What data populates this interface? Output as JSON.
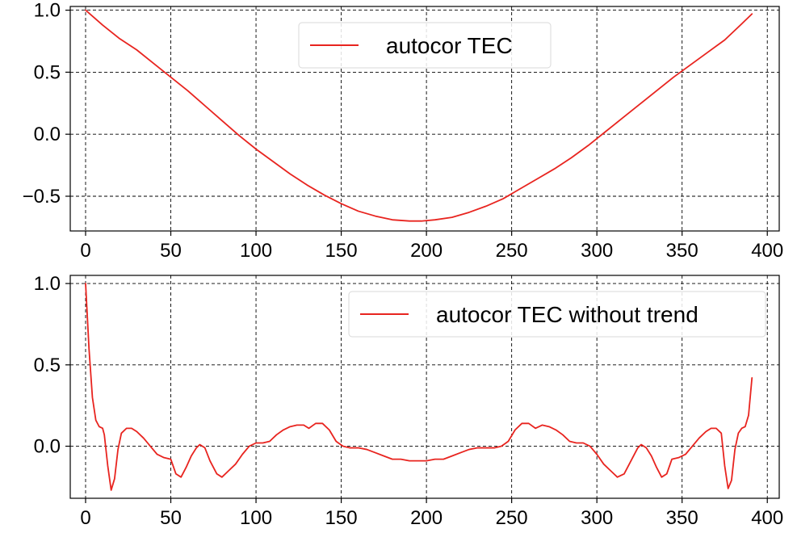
{
  "chart_data": [
    {
      "type": "line",
      "xlim": [
        -9,
        407
      ],
      "ylim": [
        -0.78,
        1.03
      ],
      "x_ticks": [
        0,
        50,
        100,
        150,
        200,
        250,
        300,
        350,
        400
      ],
      "y_ticks": [
        -0.5,
        0.0,
        0.5,
        1.0
      ],
      "x_tick_labels": [
        "0",
        "50",
        "100",
        "150",
        "200",
        "250",
        "300",
        "350",
        "400"
      ],
      "y_tick_labels": [
        "−0.5",
        "0.0",
        "0.5",
        "1.0"
      ],
      "grid": true,
      "legend_position": "top-center",
      "series": [
        {
          "name": "autocor TEC",
          "color": "#e8241f",
          "points": [
            [
              0,
              1.0
            ],
            [
              10,
              0.88
            ],
            [
              20,
              0.77
            ],
            [
              30,
              0.68
            ],
            [
              40,
              0.57
            ],
            [
              50,
              0.46
            ],
            [
              60,
              0.35
            ],
            [
              70,
              0.23
            ],
            [
              80,
              0.11
            ],
            [
              90,
              -0.01
            ],
            [
              100,
              -0.12
            ],
            [
              110,
              -0.22
            ],
            [
              120,
              -0.32
            ],
            [
              130,
              -0.41
            ],
            [
              140,
              -0.49
            ],
            [
              150,
              -0.56
            ],
            [
              160,
              -0.62
            ],
            [
              170,
              -0.66
            ],
            [
              180,
              -0.69
            ],
            [
              190,
              -0.7
            ],
            [
              197,
              -0.7
            ],
            [
              205,
              -0.69
            ],
            [
              215,
              -0.67
            ],
            [
              225,
              -0.63
            ],
            [
              235,
              -0.58
            ],
            [
              245,
              -0.52
            ],
            [
              255,
              -0.44
            ],
            [
              265,
              -0.36
            ],
            [
              275,
              -0.28
            ],
            [
              285,
              -0.19
            ],
            [
              295,
              -0.09
            ],
            [
              305,
              0.02
            ],
            [
              315,
              0.13
            ],
            [
              325,
              0.24
            ],
            [
              335,
              0.35
            ],
            [
              345,
              0.46
            ],
            [
              355,
              0.56
            ],
            [
              365,
              0.66
            ],
            [
              375,
              0.76
            ],
            [
              385,
              0.89
            ],
            [
              391,
              0.97
            ]
          ]
        }
      ]
    },
    {
      "type": "line",
      "xlim": [
        -9,
        407
      ],
      "ylim": [
        -0.32,
        1.05
      ],
      "x_ticks": [
        0,
        50,
        100,
        150,
        200,
        250,
        300,
        350,
        400
      ],
      "y_ticks": [
        0.0,
        0.5,
        1.0
      ],
      "x_tick_labels": [
        "0",
        "50",
        "100",
        "150",
        "200",
        "250",
        "300",
        "350",
        "400"
      ],
      "y_tick_labels": [
        "0.0",
        "0.5",
        "1.0"
      ],
      "grid": true,
      "legend_position": "top-right",
      "series": [
        {
          "name": "autocor TEC without trend",
          "color": "#e8241f",
          "points": [
            [
              0,
              1.0
            ],
            [
              2,
              0.6
            ],
            [
              4,
              0.3
            ],
            [
              6,
              0.16
            ],
            [
              8,
              0.12
            ],
            [
              10,
              0.11
            ],
            [
              11,
              0.07
            ],
            [
              13,
              -0.12
            ],
            [
              15,
              -0.27
            ],
            [
              17,
              -0.2
            ],
            [
              19,
              -0.02
            ],
            [
              21,
              0.08
            ],
            [
              24,
              0.11
            ],
            [
              27,
              0.11
            ],
            [
              30,
              0.09
            ],
            [
              34,
              0.05
            ],
            [
              38,
              0.0
            ],
            [
              42,
              -0.05
            ],
            [
              46,
              -0.07
            ],
            [
              50,
              -0.08
            ],
            [
              53,
              -0.17
            ],
            [
              56,
              -0.19
            ],
            [
              59,
              -0.13
            ],
            [
              62,
              -0.06
            ],
            [
              65,
              -0.01
            ],
            [
              67,
              0.01
            ],
            [
              70,
              -0.01
            ],
            [
              73,
              -0.09
            ],
            [
              77,
              -0.17
            ],
            [
              80,
              -0.19
            ],
            [
              84,
              -0.15
            ],
            [
              88,
              -0.11
            ],
            [
              92,
              -0.05
            ],
            [
              96,
              0.0
            ],
            [
              100,
              0.02
            ],
            [
              104,
              0.02
            ],
            [
              108,
              0.03
            ],
            [
              112,
              0.07
            ],
            [
              116,
              0.1
            ],
            [
              120,
              0.12
            ],
            [
              124,
              0.13
            ],
            [
              128,
              0.13
            ],
            [
              131,
              0.11
            ],
            [
              135,
              0.14
            ],
            [
              139,
              0.14
            ],
            [
              143,
              0.1
            ],
            [
              147,
              0.03
            ],
            [
              151,
              0.0
            ],
            [
              155,
              -0.01
            ],
            [
              160,
              -0.01
            ],
            [
              165,
              -0.02
            ],
            [
              170,
              -0.04
            ],
            [
              175,
              -0.06
            ],
            [
              180,
              -0.08
            ],
            [
              185,
              -0.08
            ],
            [
              190,
              -0.09
            ],
            [
              195,
              -0.09
            ],
            [
              200,
              -0.09
            ],
            [
              205,
              -0.08
            ],
            [
              210,
              -0.08
            ],
            [
              215,
              -0.06
            ],
            [
              220,
              -0.04
            ],
            [
              225,
              -0.02
            ],
            [
              230,
              -0.01
            ],
            [
              235,
              -0.01
            ],
            [
              240,
              -0.01
            ],
            [
              244,
              0.0
            ],
            [
              248,
              0.03
            ],
            [
              252,
              0.1
            ],
            [
              256,
              0.14
            ],
            [
              260,
              0.14
            ],
            [
              264,
              0.11
            ],
            [
              268,
              0.13
            ],
            [
              272,
              0.12
            ],
            [
              276,
              0.1
            ],
            [
              280,
              0.07
            ],
            [
              284,
              0.03
            ],
            [
              288,
              0.02
            ],
            [
              292,
              0.02
            ],
            [
              296,
              0.0
            ],
            [
              300,
              -0.05
            ],
            [
              304,
              -0.11
            ],
            [
              308,
              -0.15
            ],
            [
              312,
              -0.19
            ],
            [
              316,
              -0.17
            ],
            [
              320,
              -0.09
            ],
            [
              324,
              -0.01
            ],
            [
              326,
              0.01
            ],
            [
              329,
              -0.01
            ],
            [
              332,
              -0.06
            ],
            [
              335,
              -0.13
            ],
            [
              338,
              -0.19
            ],
            [
              341,
              -0.17
            ],
            [
              344,
              -0.08
            ],
            [
              348,
              -0.07
            ],
            [
              352,
              -0.05
            ],
            [
              356,
              0.0
            ],
            [
              360,
              0.05
            ],
            [
              364,
              0.09
            ],
            [
              367,
              0.11
            ],
            [
              370,
              0.11
            ],
            [
              373,
              0.08
            ],
            [
              375,
              -0.12
            ],
            [
              377,
              -0.26
            ],
            [
              379,
              -0.21
            ],
            [
              381,
              -0.02
            ],
            [
              383,
              0.08
            ],
            [
              385,
              0.11
            ],
            [
              387,
              0.12
            ],
            [
              389,
              0.19
            ],
            [
              391,
              0.42
            ]
          ]
        }
      ]
    }
  ]
}
